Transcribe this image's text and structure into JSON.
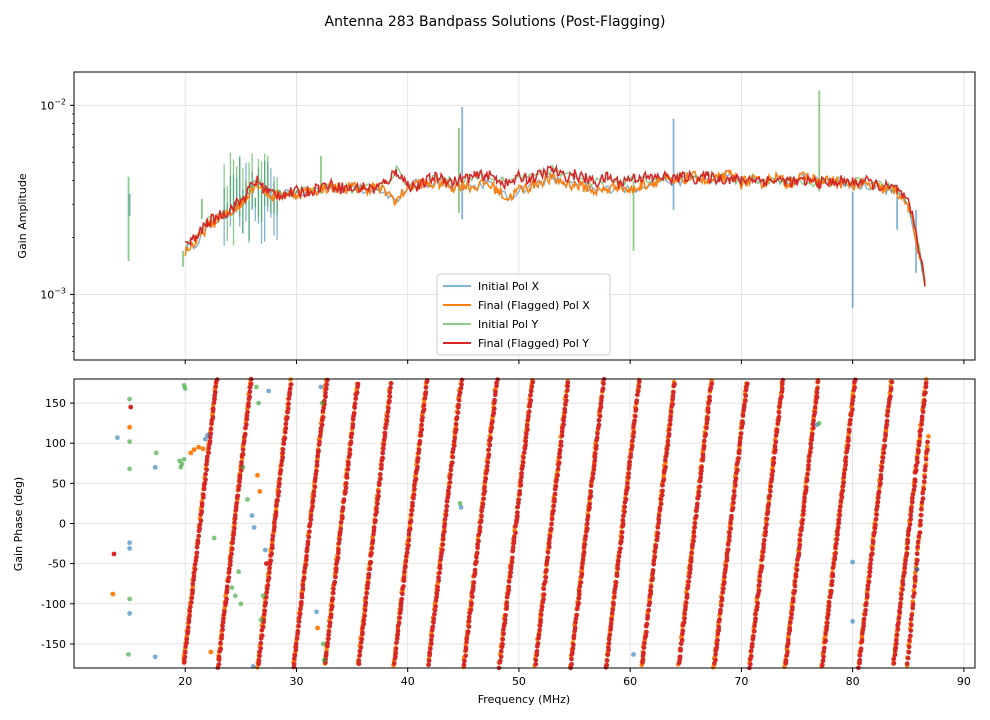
{
  "figure": {
    "title": "Antenna 283 Bandpass Solutions (Post-Flagging)"
  },
  "chart_data": [
    {
      "type": "line",
      "ylabel": "Gain Amplitude",
      "xlabel": "",
      "yscale": "log",
      "xlim": [
        10,
        91
      ],
      "ylim": [
        0.00045,
        0.015
      ],
      "xticks": [
        20,
        30,
        40,
        50,
        60,
        70,
        80,
        90
      ],
      "ytick_labels": [
        {
          "value": 0.01,
          "label": "10",
          "exp": "−2"
        },
        {
          "value": 0.001,
          "label": "10",
          "exp": "−3"
        }
      ],
      "grid": true,
      "legend": "lower-center",
      "series": [
        {
          "name": "Initial Pol X",
          "color": "#1f77b4",
          "alpha": 0.55
        },
        {
          "name": "Final (Flagged) Pol X",
          "color": "#ff7f0e",
          "alpha": 1.0
        },
        {
          "name": "Initial Pol Y",
          "color": "#2ca02c",
          "alpha": 0.55
        },
        {
          "name": "Final (Flagged) Pol Y",
          "color": "#d62728",
          "alpha": 1.0
        }
      ],
      "final_x": {
        "x": [
          20.0,
          20.5,
          21.0,
          21.5,
          22.0,
          22.5,
          23.0,
          23.5,
          24.0,
          24.5,
          25.0,
          25.5,
          26.0,
          26.5,
          27.0,
          27.5,
          28.0,
          29.0,
          30.0,
          31.0,
          32.0,
          33.0,
          34.0,
          35.0,
          36.0,
          37.0,
          38.0,
          39.0,
          40.0,
          41.0,
          42.0,
          43.0,
          44.0,
          45.0,
          46.0,
          47.0,
          48.0,
          49.0,
          50.0,
          51.0,
          52.0,
          53.0,
          54.0,
          55.0,
          56.0,
          57.0,
          58.0,
          59.0,
          60.0,
          61.0,
          62.0,
          63.0,
          64.0,
          65.0,
          66.0,
          67.0,
          68.0,
          69.0,
          70.0,
          71.0,
          72.0,
          73.0,
          74.0,
          75.0,
          76.0,
          77.0,
          78.0,
          79.0,
          80.0,
          81.0,
          82.0,
          83.0,
          84.0,
          85.0,
          85.5,
          86.0,
          86.5
        ],
        "y": [
          0.0017,
          0.0018,
          0.0019,
          0.0021,
          0.0023,
          0.0024,
          0.0025,
          0.0026,
          0.0027,
          0.0029,
          0.003,
          0.0033,
          0.0037,
          0.0039,
          0.0036,
          0.0034,
          0.0033,
          0.0034,
          0.0034,
          0.0035,
          0.0036,
          0.0037,
          0.0036,
          0.0037,
          0.0036,
          0.0037,
          0.0035,
          0.0031,
          0.0037,
          0.0039,
          0.0038,
          0.0039,
          0.0037,
          0.0038,
          0.0037,
          0.0039,
          0.0036,
          0.0032,
          0.0036,
          0.0037,
          0.004,
          0.0041,
          0.0039,
          0.0038,
          0.0037,
          0.0035,
          0.0036,
          0.0038,
          0.0035,
          0.0038,
          0.0039,
          0.0041,
          0.0039,
          0.0041,
          0.0042,
          0.0039,
          0.0041,
          0.0043,
          0.0039,
          0.004,
          0.0039,
          0.0042,
          0.0039,
          0.0041,
          0.0042,
          0.0039,
          0.004,
          0.0039,
          0.0038,
          0.0038,
          0.0037,
          0.0036,
          0.0035,
          0.0029,
          0.0022,
          0.0016,
          0.0012
        ]
      },
      "final_y": {
        "x": [
          20.0,
          20.5,
          21.0,
          21.5,
          22.0,
          22.5,
          23.0,
          23.5,
          24.0,
          24.5,
          25.0,
          25.5,
          26.0,
          26.5,
          27.0,
          27.5,
          28.0,
          29.0,
          30.0,
          31.0,
          32.0,
          33.0,
          34.0,
          35.0,
          36.0,
          37.0,
          38.0,
          39.0,
          40.0,
          41.0,
          42.0,
          43.0,
          44.0,
          45.0,
          46.0,
          47.0,
          48.0,
          49.0,
          50.0,
          51.0,
          52.0,
          53.0,
          54.0,
          55.0,
          56.0,
          57.0,
          58.0,
          59.0,
          60.0,
          61.0,
          62.0,
          63.0,
          64.0,
          65.0,
          66.0,
          67.0,
          68.0,
          69.0,
          70.0,
          71.0,
          72.0,
          73.0,
          74.0,
          75.0,
          76.0,
          77.0,
          78.0,
          79.0,
          80.0,
          81.0,
          82.0,
          83.0,
          84.0,
          85.0,
          85.5,
          86.0,
          86.5
        ],
        "y": [
          0.0018,
          0.0019,
          0.002,
          0.0022,
          0.0024,
          0.0025,
          0.0026,
          0.0027,
          0.0028,
          0.003,
          0.0031,
          0.0034,
          0.0038,
          0.004,
          0.0037,
          0.0035,
          0.0034,
          0.0034,
          0.0035,
          0.0035,
          0.0037,
          0.0038,
          0.0037,
          0.0036,
          0.0037,
          0.0036,
          0.0039,
          0.0045,
          0.0038,
          0.0037,
          0.0041,
          0.0042,
          0.0039,
          0.0041,
          0.0042,
          0.0043,
          0.0041,
          0.0038,
          0.0042,
          0.0041,
          0.0043,
          0.0046,
          0.0042,
          0.0043,
          0.0041,
          0.0039,
          0.0042,
          0.0039,
          0.0041,
          0.0042,
          0.0041,
          0.0042,
          0.0041,
          0.0042,
          0.0041,
          0.0042,
          0.0041,
          0.0041,
          0.004,
          0.0041,
          0.004,
          0.004,
          0.004,
          0.0039,
          0.004,
          0.0039,
          0.0039,
          0.004,
          0.0039,
          0.004,
          0.0038,
          0.0037,
          0.0036,
          0.003,
          0.0024,
          0.0017,
          0.0011
        ]
      },
      "initial_x_spikes": [
        [
          44.9,
          0.0025,
          0.0098
        ],
        [
          63.9,
          0.0028,
          0.0085
        ],
        [
          80.0,
          0.00085,
          0.0035
        ],
        [
          84.0,
          0.0022,
          0.0033
        ],
        [
          85.7,
          0.0013,
          0.0028
        ],
        [
          15.0,
          0.0026,
          0.0034
        ]
      ],
      "initial_y_spikes": [
        [
          14.9,
          0.0015,
          0.0042
        ],
        [
          44.6,
          0.0027,
          0.0076
        ],
        [
          60.3,
          0.0017,
          0.004
        ],
        [
          77.0,
          0.0035,
          0.012
        ],
        [
          32.2,
          0.0034,
          0.0054
        ],
        [
          19.8,
          0.0014,
          0.0017
        ],
        [
          21.5,
          0.0025,
          0.0032
        ]
      ]
    },
    {
      "type": "scatter",
      "ylabel": "Gain Phase (deg)",
      "xlabel": "Frequency (MHz)",
      "xlim": [
        10,
        91
      ],
      "ylim": [
        -180,
        180
      ],
      "xticks": [
        20,
        30,
        40,
        50,
        60,
        70,
        80,
        90
      ],
      "yticks": [
        -150,
        -100,
        -50,
        0,
        50,
        100,
        150
      ],
      "grid": true,
      "phase_wrap_starts_mhz": [
        19.8,
        22.9,
        26.5,
        29.7,
        32.5,
        35.5,
        38.7,
        41.8,
        45.0,
        48.2,
        51.4,
        54.6,
        57.8,
        61.0,
        64.3,
        67.5,
        70.7,
        73.9,
        77.2,
        80.5,
        83.6
      ],
      "phase_wrap_width_mhz": 3.0,
      "final_tail": {
        "x": [
          84.9,
          86.8
        ],
        "y": [
          -175,
          110
        ]
      },
      "outliers": [
        {
          "x": 13.6,
          "y": -38,
          "series": 3
        },
        {
          "x": 13.5,
          "y": -88,
          "series": 1
        },
        {
          "x": 13.9,
          "y": 107,
          "series": 0
        },
        {
          "x": 15.0,
          "y": 155,
          "series": 2
        },
        {
          "x": 15.1,
          "y": 145,
          "series": 3
        },
        {
          "x": 15.0,
          "y": 120,
          "series": 1
        },
        {
          "x": 15.0,
          "y": 102,
          "series": 2
        },
        {
          "x": 15.0,
          "y": 68,
          "series": 2
        },
        {
          "x": 15.0,
          "y": -24,
          "series": 0
        },
        {
          "x": 15.0,
          "y": -31,
          "series": 0
        },
        {
          "x": 15.0,
          "y": -94,
          "series": 2
        },
        {
          "x": 15.0,
          "y": -112,
          "series": 0
        },
        {
          "x": 14.9,
          "y": -163,
          "series": 2
        },
        {
          "x": 17.3,
          "y": 70,
          "series": 0
        },
        {
          "x": 17.4,
          "y": 88,
          "series": 2
        },
        {
          "x": 17.3,
          "y": -166,
          "series": 0
        },
        {
          "x": 19.5,
          "y": 78,
          "series": 2
        },
        {
          "x": 19.7,
          "y": 74,
          "series": 2
        },
        {
          "x": 19.9,
          "y": 80,
          "series": 2
        },
        {
          "x": 19.6,
          "y": 70,
          "series": 2
        },
        {
          "x": 20.0,
          "y": 168,
          "series": 2
        },
        {
          "x": 19.9,
          "y": 172,
          "series": 2
        },
        {
          "x": 20.5,
          "y": 88,
          "series": 1
        },
        {
          "x": 20.8,
          "y": 92,
          "series": 1
        },
        {
          "x": 21.2,
          "y": 95,
          "series": 1
        },
        {
          "x": 21.6,
          "y": 93,
          "series": 1
        },
        {
          "x": 21.8,
          "y": 105,
          "series": 0
        },
        {
          "x": 22.0,
          "y": 110,
          "series": 0
        },
        {
          "x": 22.6,
          "y": -18,
          "series": 2
        },
        {
          "x": 22.3,
          "y": -160,
          "series": 1
        },
        {
          "x": 24.2,
          "y": -80,
          "series": 2
        },
        {
          "x": 24.5,
          "y": -90,
          "series": 2
        },
        {
          "x": 24.8,
          "y": -60,
          "series": 2
        },
        {
          "x": 25.0,
          "y": -100,
          "series": 2
        },
        {
          "x": 25.2,
          "y": 70,
          "series": 2
        },
        {
          "x": 25.6,
          "y": 30,
          "series": 2
        },
        {
          "x": 26.0,
          "y": 10,
          "series": 0
        },
        {
          "x": 26.2,
          "y": -5,
          "series": 0
        },
        {
          "x": 26.4,
          "y": 170,
          "series": 2
        },
        {
          "x": 26.6,
          "y": 150,
          "series": 2
        },
        {
          "x": 26.5,
          "y": 60,
          "series": 1
        },
        {
          "x": 26.7,
          "y": 40,
          "series": 1
        },
        {
          "x": 26.8,
          "y": -120,
          "series": 2
        },
        {
          "x": 27.0,
          "y": -90,
          "series": 2
        },
        {
          "x": 27.2,
          "y": -33,
          "series": 0
        },
        {
          "x": 27.3,
          "y": -50,
          "series": 3
        },
        {
          "x": 27.5,
          "y": 165,
          "series": 0
        },
        {
          "x": 26.1,
          "y": -178,
          "series": 0
        },
        {
          "x": 31.8,
          "y": -110,
          "series": 0
        },
        {
          "x": 31.9,
          "y": -130,
          "series": 1
        },
        {
          "x": 32.2,
          "y": 170,
          "series": 0
        },
        {
          "x": 32.3,
          "y": 150,
          "series": 2
        },
        {
          "x": 32.4,
          "y": -150,
          "series": 2
        },
        {
          "x": 32.5,
          "y": -170,
          "series": 2
        },
        {
          "x": 44.7,
          "y": 25,
          "series": 2
        },
        {
          "x": 44.8,
          "y": 20,
          "series": 0
        },
        {
          "x": 60.3,
          "y": -163,
          "series": 0
        },
        {
          "x": 76.8,
          "y": 123,
          "series": 0
        },
        {
          "x": 77.0,
          "y": 125,
          "series": 2
        },
        {
          "x": 80.0,
          "y": -48,
          "series": 0
        },
        {
          "x": 80.0,
          "y": -122,
          "series": 0
        },
        {
          "x": 85.8,
          "y": -57,
          "series": 0
        }
      ]
    }
  ]
}
